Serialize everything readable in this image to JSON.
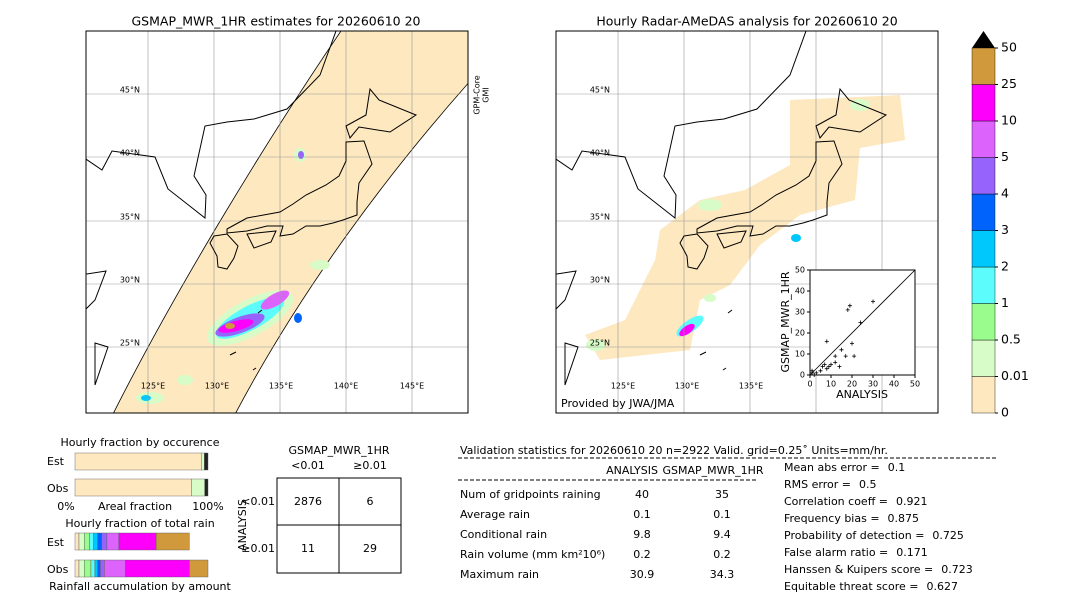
{
  "map_left": {
    "title": "GSMAP_MWR_1HR estimates for 20260610 20",
    "lat_labels": [
      "45°N",
      "40°N",
      "35°N",
      "30°N",
      "25°N"
    ],
    "lon_labels": [
      "125°E",
      "130°E",
      "135°E",
      "140°E",
      "145°E"
    ],
    "side_label": [
      "GPM-Core",
      "GMI"
    ]
  },
  "map_right": {
    "title": "Hourly Radar-AMeDAS analysis for 20260610 20",
    "lat_labels": [
      "45°N",
      "40°N",
      "35°N",
      "30°N",
      "25°N"
    ],
    "lon_labels": [
      "125°E",
      "130°E",
      "135°E"
    ],
    "credit": "Provided by JWA/JMA"
  },
  "scatter": {
    "type": "scatter",
    "x_label": "ANALYSIS",
    "y_label": "GSMAP_MWR_1HR",
    "xlim": [
      0,
      50
    ],
    "ylim": [
      0,
      50
    ],
    "xticks": [
      0,
      10,
      20,
      30,
      40,
      50
    ],
    "yticks": [
      0,
      10,
      20,
      30,
      40,
      50
    ],
    "x": [
      0,
      1,
      2,
      1,
      3,
      5,
      7,
      8,
      9,
      10,
      12,
      14,
      17,
      18,
      19,
      20,
      21,
      24,
      30,
      12,
      8,
      15,
      6
    ],
    "y": [
      0,
      1,
      0,
      2,
      1,
      2,
      5,
      3,
      4,
      5,
      6,
      4,
      9,
      31,
      33,
      15,
      9,
      25,
      35,
      9,
      16,
      12,
      4
    ]
  },
  "colorbar": {
    "ticks": [
      0,
      0.01,
      0.5,
      1,
      2,
      3,
      4,
      5,
      10,
      25,
      50
    ],
    "colors": [
      "#fde8c0",
      "#d8fcc8",
      "#9afc8c",
      "#5cfcfc",
      "#00c8fc",
      "#0064fc",
      "#9664fc",
      "#dc64fc",
      "#fc00fc",
      "#d09a3c"
    ],
    "extend_color": "#000000"
  },
  "occurrence": {
    "title": "Hourly fraction by occurence",
    "rows": [
      "Est",
      "Obs"
    ],
    "x_label": "Areal fraction",
    "x_min_label": "0%",
    "x_max_label": "100%",
    "colors": [
      "#fde8c0",
      "#d8fcc8",
      "#222222"
    ],
    "est": [
      0.953,
      0.02,
      0.027
    ],
    "obs": [
      0.877,
      0.098,
      0.025
    ]
  },
  "total_rain": {
    "title": "Hourly fraction of total rain",
    "rows": [
      "Est",
      "Obs"
    ],
    "x_label": "Rainfall accumulation by amount",
    "est": [
      0.03,
      0.04,
      0.04,
      0.03,
      0.03,
      0.03,
      0.04,
      0.09,
      0.28,
      0.25
    ],
    "obs": [
      0.03,
      0.04,
      0.05,
      0.03,
      0.02,
      0.02,
      0.03,
      0.16,
      0.48,
      0.14
    ]
  },
  "contingency": {
    "title": "GSMAP_MWR_1HR",
    "columns": [
      "<0.01",
      "≥0.01"
    ],
    "row_title": "ANALYSIS",
    "rows": [
      "<0.01",
      "≥0.01"
    ],
    "cells": [
      [
        2876,
        6
      ],
      [
        11,
        29
      ]
    ]
  },
  "validation": {
    "title": "Validation statistics for 20260610 20  n=2922 Valid. grid=0.25˚ Units=mm/hr.",
    "columns": [
      "ANALYSIS",
      "GSMAP_MWR_1HR"
    ],
    "rows": [
      {
        "label": "Num of gridpoints raining",
        "values": [
          40,
          35
        ]
      },
      {
        "label": "Average rain",
        "values": [
          0.1,
          0.1
        ]
      },
      {
        "label": "Conditional rain",
        "values": [
          9.8,
          9.4
        ]
      },
      {
        "label": "Rain volume (mm km²10⁶)",
        "values": [
          0.2,
          0.2
        ]
      },
      {
        "label": "Maximum rain",
        "values": [
          30.9,
          34.3
        ]
      }
    ],
    "scores": [
      {
        "label": "Mean abs error =",
        "value": 0.1
      },
      {
        "label": "RMS error =",
        "value": 0.5
      },
      {
        "label": "Correlation coeff =",
        "value": 0.921
      },
      {
        "label": "Frequency bias =",
        "value": 0.875
      },
      {
        "label": "Probability of detection =",
        "value": 0.725
      },
      {
        "label": "False alarm ratio =",
        "value": 0.171
      },
      {
        "label": "Hanssen & Kuipers score =",
        "value": 0.723
      },
      {
        "label": "Equitable threat score =",
        "value": 0.627
      }
    ]
  }
}
